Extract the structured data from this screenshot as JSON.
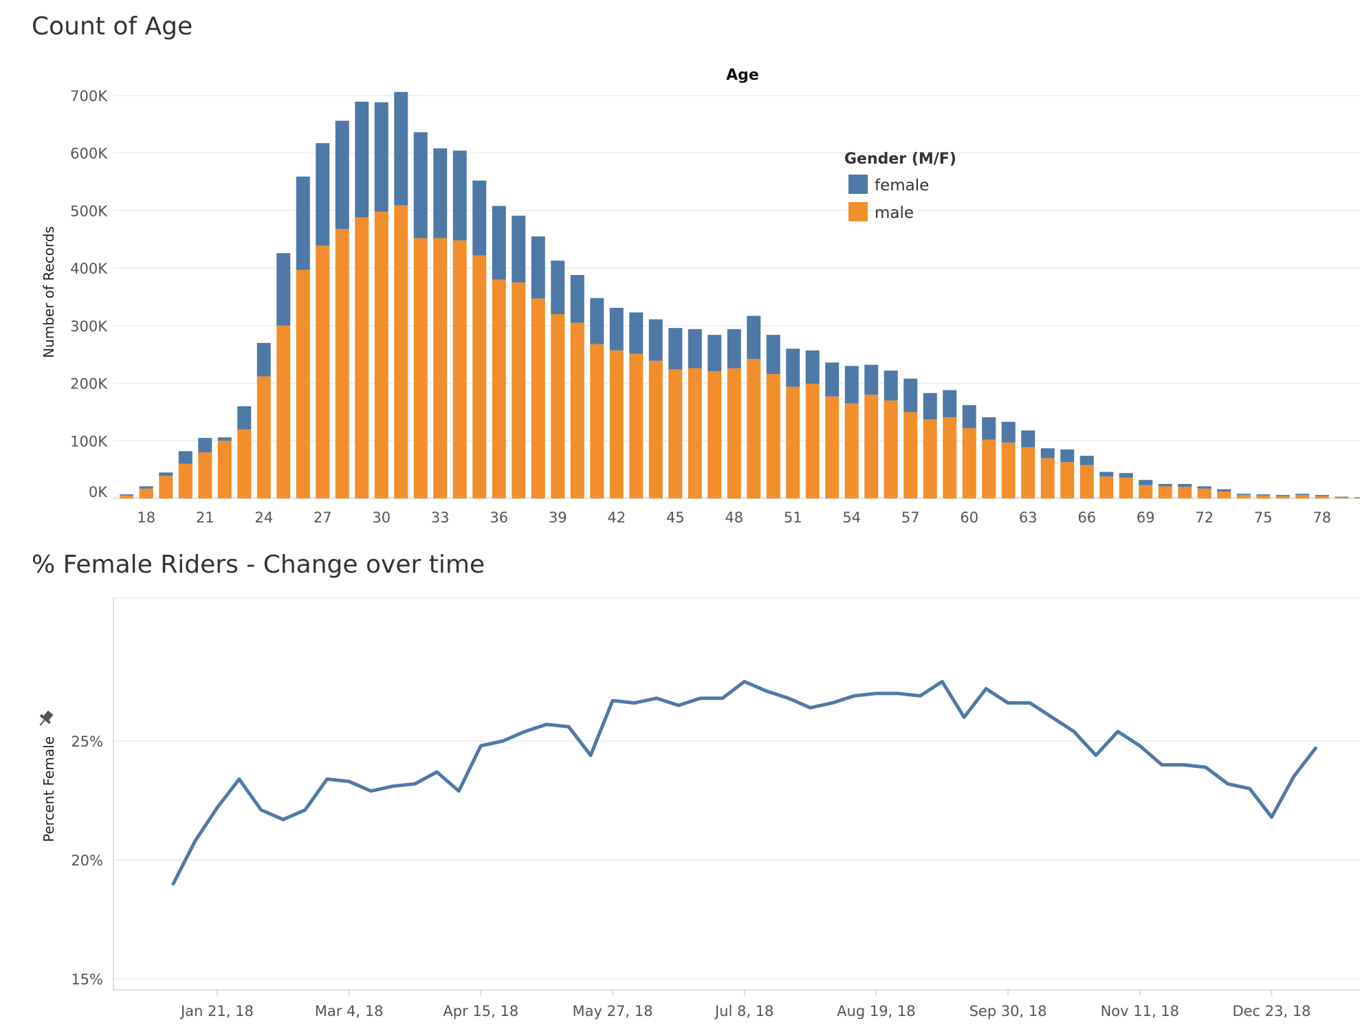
{
  "chart_data": [
    {
      "type": "bar",
      "stacked": true,
      "title": "Count of Age",
      "header": "Age",
      "ylabel": "Number of Records",
      "ylim": [
        0,
        720000
      ],
      "yticks": [
        "0K",
        "100K",
        "200K",
        "300K",
        "400K",
        "500K",
        "600K",
        "700K"
      ],
      "xticks": [
        "18",
        "21",
        "24",
        "27",
        "30",
        "33",
        "36",
        "39",
        "42",
        "45",
        "48",
        "51",
        "54",
        "57",
        "60",
        "63",
        "66",
        "69",
        "72",
        "75",
        "78"
      ],
      "legend": {
        "title": "Gender (M/F)",
        "position": "top-right",
        "colors": {
          "female": "#4e79a7",
          "male": "#f28e2b"
        }
      },
      "categories": [
        17,
        18,
        19,
        20,
        21,
        22,
        23,
        24,
        25,
        26,
        27,
        28,
        29,
        30,
        31,
        32,
        33,
        34,
        35,
        36,
        37,
        38,
        39,
        40,
        41,
        42,
        43,
        44,
        45,
        46,
        47,
        48,
        49,
        50,
        51,
        52,
        53,
        54,
        55,
        56,
        57,
        58,
        59,
        60,
        61,
        62,
        63,
        64,
        65,
        66,
        67,
        68,
        69,
        70,
        71,
        72,
        73,
        74,
        75,
        76,
        77,
        78,
        79,
        80
      ],
      "series": [
        {
          "name": "male",
          "values": [
            5000,
            17000,
            39000,
            60000,
            80000,
            100000,
            120000,
            212000,
            300000,
            397000,
            439000,
            468000,
            488000,
            498000,
            509000,
            452000,
            452000,
            448000,
            422000,
            380000,
            375000,
            347000,
            320000,
            305000,
            268000,
            257000,
            251000,
            239000,
            224000,
            226000,
            221000,
            226000,
            242000,
            216000,
            194000,
            199000,
            177000,
            165000,
            180000,
            170000,
            150000,
            137000,
            141000,
            122000,
            102000,
            97000,
            89000,
            70000,
            63000,
            58000,
            38000,
            36000,
            23000,
            21000,
            20000,
            17000,
            12000,
            6000,
            5000,
            4000,
            6000,
            4000,
            2000,
            1000
          ]
        },
        {
          "name": "female",
          "values": [
            2000,
            4000,
            6000,
            22000,
            25000,
            6000,
            40000,
            58000,
            126000,
            162000,
            178000,
            188000,
            201000,
            190000,
            197000,
            184000,
            156000,
            156000,
            130000,
            128000,
            116000,
            108000,
            93000,
            83000,
            80000,
            74000,
            72000,
            72000,
            72000,
            68000,
            63000,
            68000,
            75000,
            68000,
            66000,
            58000,
            59000,
            65000,
            52000,
            52000,
            58000,
            46000,
            47000,
            40000,
            39000,
            36000,
            29000,
            17000,
            22000,
            16000,
            8000,
            8000,
            9000,
            4000,
            5000,
            4000,
            4000,
            2000,
            2000,
            2000,
            2000,
            2000,
            1000,
            1000
          ]
        }
      ]
    },
    {
      "type": "line",
      "title": "% Female Riders - Change over time",
      "ylabel": "Percent Female",
      "ylim": [
        15,
        30
      ],
      "yticks": [
        "15%",
        "20%",
        "25%"
      ],
      "xticks": [
        "Jan 21, 18",
        "Mar 4, 18",
        "Apr 15, 18",
        "May 27, 18",
        "Jul 8, 18",
        "Aug 19, 18",
        "Sep 30, 18",
        "Nov 11, 18",
        "Dec 23, 18"
      ],
      "color": "#4e79a7",
      "series": [
        {
          "values": [
            19.0,
            20.8,
            22.2,
            23.4,
            22.1,
            21.7,
            22.1,
            23.4,
            23.3,
            22.9,
            23.1,
            23.2,
            23.7,
            22.9,
            24.8,
            25.0,
            25.4,
            25.7,
            25.6,
            24.4,
            26.7,
            26.6,
            26.8,
            26.5,
            26.8,
            26.8,
            27.5,
            27.1,
            26.8,
            26.4,
            26.6,
            26.9,
            27.0,
            27.0,
            26.9,
            27.5,
            26.0,
            27.2,
            26.6,
            26.6,
            26.0,
            25.4,
            24.4,
            25.4,
            24.8,
            24.0,
            24.0,
            23.9,
            23.2,
            23.0,
            21.8,
            23.5,
            24.7
          ]
        }
      ]
    }
  ]
}
